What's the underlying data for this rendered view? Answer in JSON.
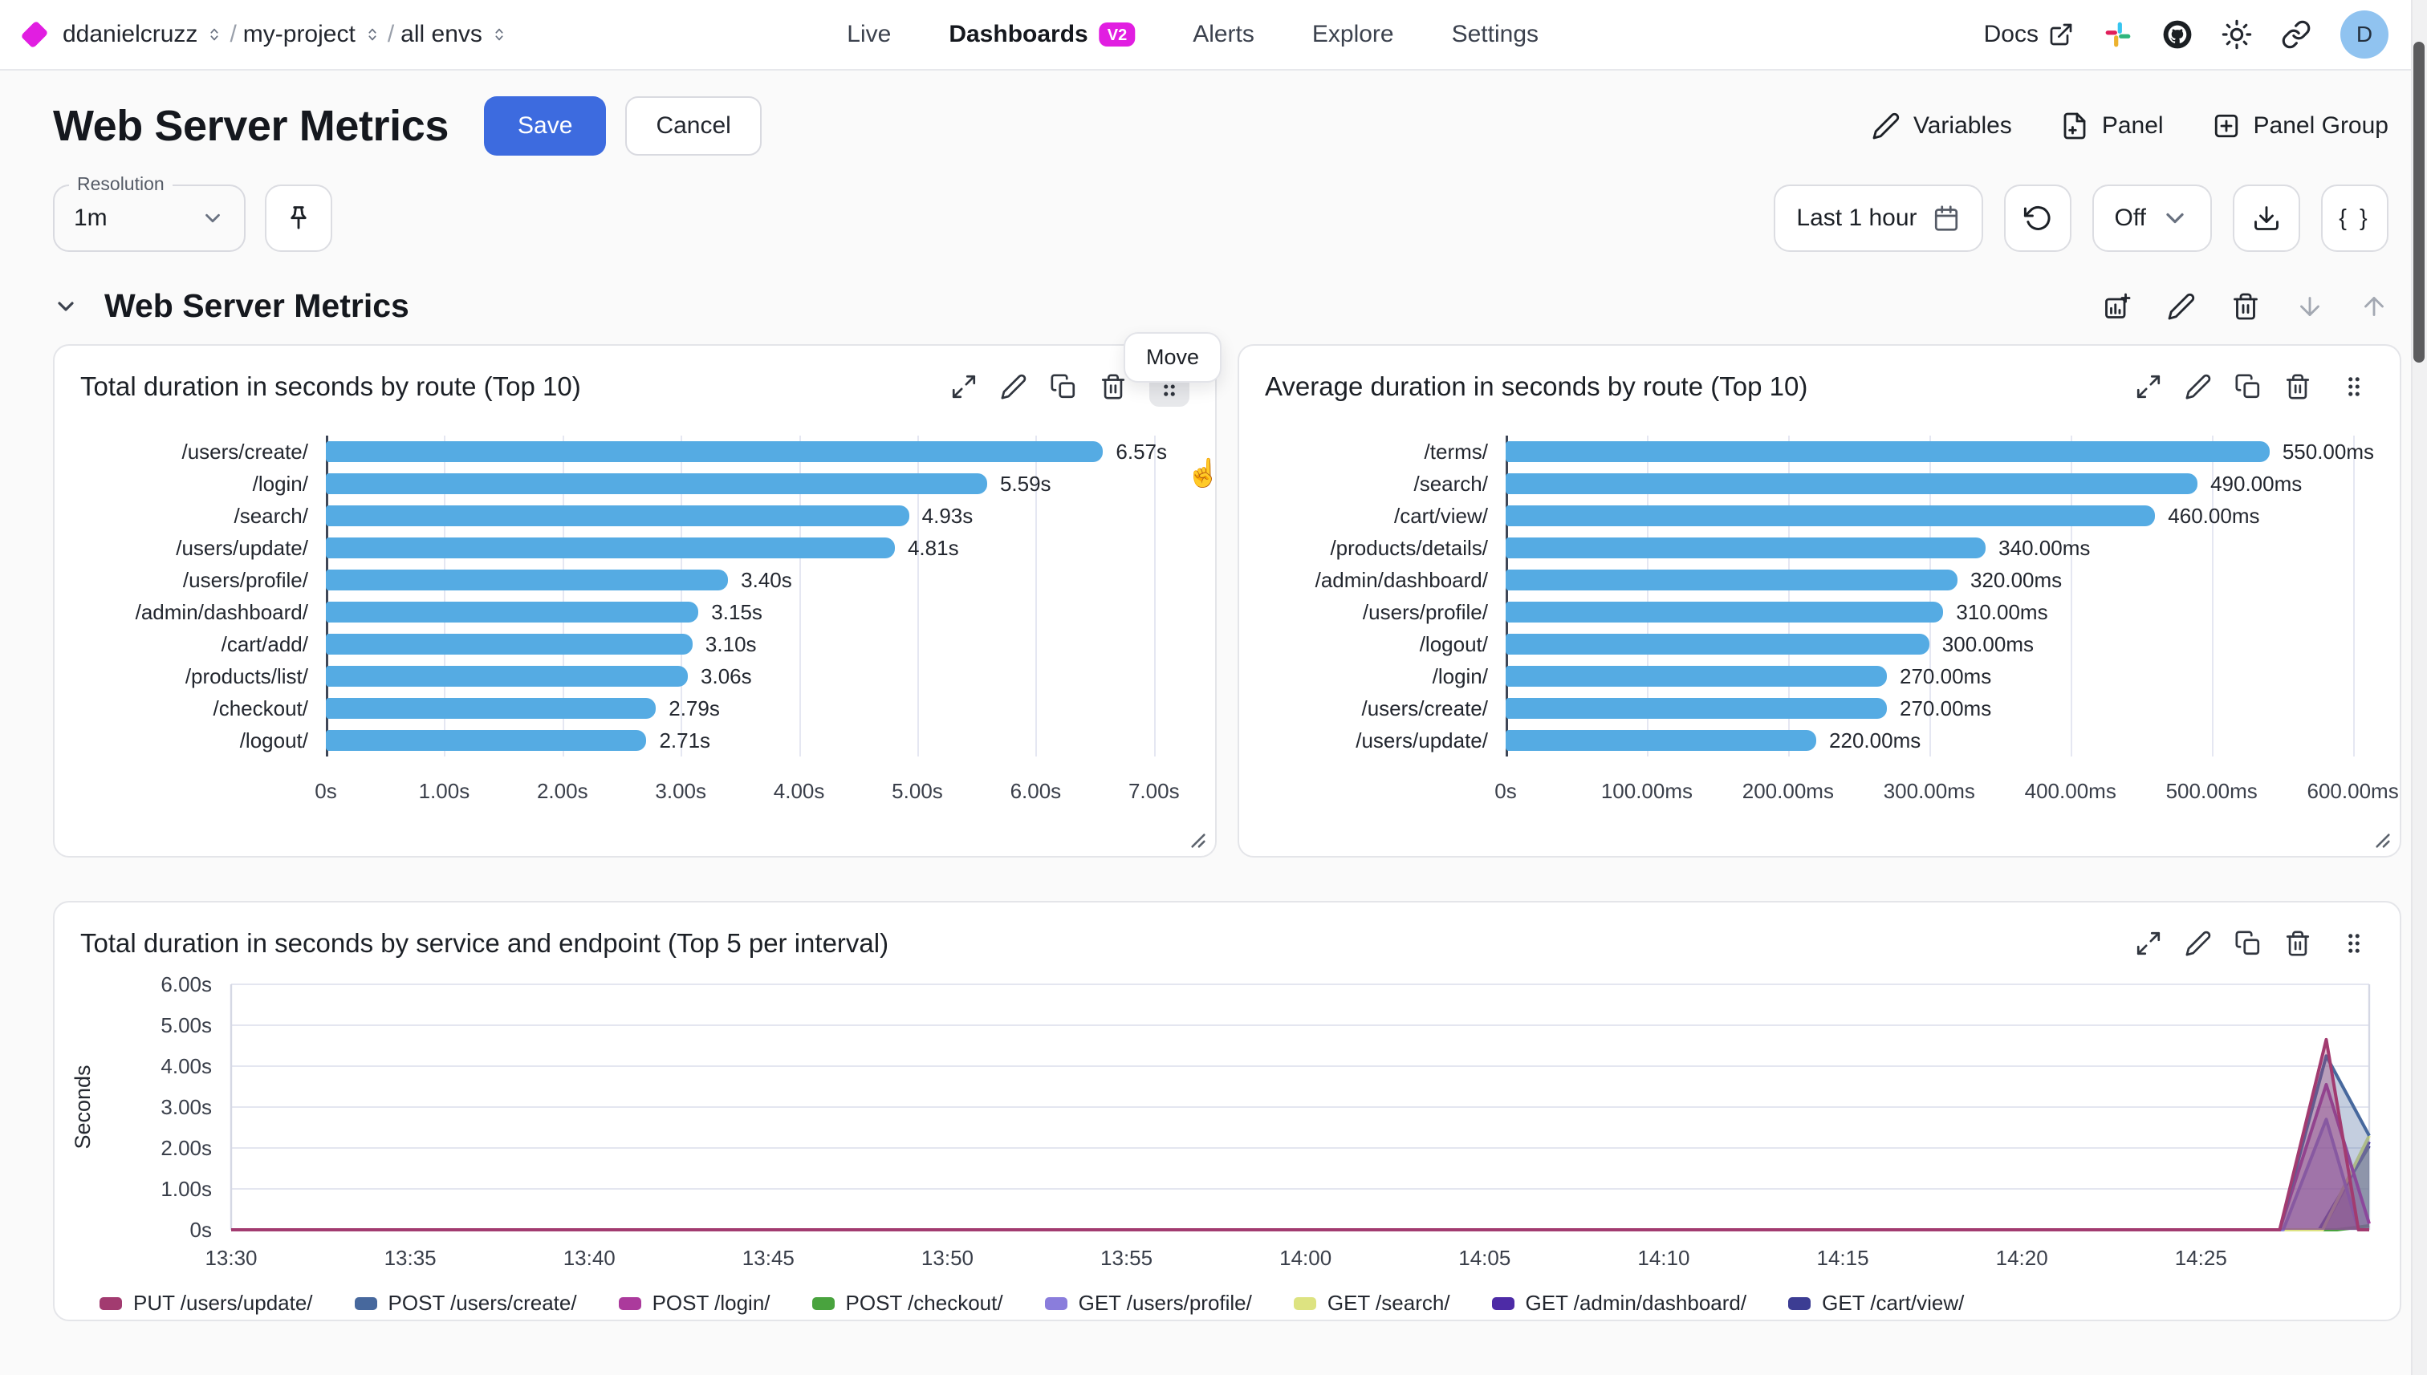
{
  "nav": {
    "breadcrumb": [
      {
        "label": "ddanielcruzz"
      },
      {
        "label": "my-project"
      },
      {
        "label": "all envs"
      }
    ],
    "tabs": [
      {
        "label": "Live",
        "active": false
      },
      {
        "label": "Dashboards",
        "active": true,
        "badge": "V2"
      },
      {
        "label": "Alerts",
        "active": false
      },
      {
        "label": "Explore",
        "active": false
      },
      {
        "label": "Settings",
        "active": false
      }
    ],
    "docs_label": "Docs",
    "icons_right": [
      "slack-icon",
      "github-icon",
      "theme-sun-icon",
      "share-link-icon"
    ],
    "avatar_letter": "D",
    "brand_color": "#e11ee1"
  },
  "header": {
    "title": "Web Server Metrics",
    "save_label": "Save",
    "cancel_label": "Cancel",
    "actions": [
      {
        "label": "Variables",
        "icon": "pencil-icon"
      },
      {
        "label": "Panel",
        "icon": "file-plus-icon"
      },
      {
        "label": "Panel Group",
        "icon": "square-plus-icon"
      }
    ],
    "save_color": "#3d6bdf"
  },
  "controls": {
    "resolution_label": "Resolution",
    "resolution_value": "1m",
    "time_range_label": "Last 1 hour",
    "refresh_value": "Off",
    "code_button_label": "{ }"
  },
  "section": {
    "title": "Web Server Metrics",
    "move_tooltip": "Move",
    "hand_cursor_glyph": "☝"
  },
  "chart_data": [
    {
      "type": "bar",
      "orientation": "horizontal",
      "title": "Total duration in seconds by route (Top 10)",
      "bar_color": "#55abe3",
      "categories": [
        "/users/create/",
        "/login/",
        "/search/",
        "/users/update/",
        "/users/profile/",
        "/admin/dashboard/",
        "/cart/add/",
        "/products/list/",
        "/checkout/",
        "/logout/"
      ],
      "values": [
        6.57,
        5.59,
        4.93,
        4.81,
        3.4,
        3.15,
        3.1,
        3.06,
        2.79,
        2.71
      ],
      "value_labels": [
        "6.57s",
        "5.59s",
        "4.93s",
        "4.81s",
        "3.40s",
        "3.15s",
        "3.10s",
        "3.06s",
        "2.79s",
        "2.71s"
      ],
      "tick_values": [
        0,
        1,
        2,
        3,
        4,
        5,
        6,
        7
      ],
      "tick_labels": [
        "0s",
        "1.00s",
        "2.00s",
        "3.00s",
        "4.00s",
        "5.00s",
        "6.00s",
        "7.00s"
      ],
      "xlim": [
        0,
        7.3
      ],
      "grid": true
    },
    {
      "type": "bar",
      "orientation": "horizontal",
      "title": "Average duration in seconds by route (Top 10)",
      "bar_color": "#55abe3",
      "categories": [
        "/terms/",
        "/search/",
        "/cart/view/",
        "/products/details/",
        "/admin/dashboard/",
        "/users/profile/",
        "/logout/",
        "/login/",
        "/users/create/",
        "/users/update/"
      ],
      "values": [
        550,
        490,
        460,
        340,
        320,
        310,
        300,
        270,
        270,
        220
      ],
      "value_labels": [
        "550.00ms",
        "490.00ms",
        "460.00ms",
        "340.00ms",
        "320.00ms",
        "310.00ms",
        "300.00ms",
        "270.00ms",
        "270.00ms",
        "220.00ms"
      ],
      "tick_values": [
        0,
        100,
        200,
        300,
        400,
        500,
        600
      ],
      "tick_labels": [
        "0s",
        "100.00ms",
        "200.00ms",
        "300.00ms",
        "400.00ms",
        "500.00ms",
        "600.00ms"
      ],
      "xlim": [
        0,
        615
      ],
      "grid": true
    },
    {
      "type": "area",
      "title": "Total duration in seconds by service and endpoint (Top 5 per interval)",
      "ylabel": "Seconds",
      "ylim": [
        0,
        6
      ],
      "y_tick_values": [
        0,
        1,
        2,
        3,
        4,
        5,
        6
      ],
      "y_tick_labels": [
        "0s",
        "1.00s",
        "2.00s",
        "3.00s",
        "4.00s",
        "5.00s",
        "6.00s"
      ],
      "x_tick_minutes": [
        0,
        5,
        10,
        15,
        20,
        25,
        30,
        35,
        40,
        45,
        50,
        55
      ],
      "x_tick_labels": [
        "13:30",
        "13:35",
        "13:40",
        "13:45",
        "13:50",
        "13:55",
        "14:00",
        "14:05",
        "14:10",
        "14:15",
        "14:20",
        "14:25"
      ],
      "xlim_minutes": [
        0,
        59.7
      ],
      "grid": true,
      "legend_position": "bottom",
      "series": [
        {
          "name": "PUT /users/update/",
          "color": "#a23b70",
          "points": [
            [
              0,
              0
            ],
            [
              57.2,
              0
            ],
            [
              58.5,
              4.65
            ],
            [
              59.4,
              0
            ],
            [
              59.7,
              0
            ]
          ]
        },
        {
          "name": "POST /users/create/",
          "color": "#47689d",
          "points": [
            [
              0,
              0
            ],
            [
              57.2,
              0
            ],
            [
              58.5,
              4.25
            ],
            [
              59.7,
              2.3
            ]
          ]
        },
        {
          "name": "POST /login/",
          "color": "#ab3a9c",
          "points": [
            [
              0,
              0
            ],
            [
              57.2,
              0
            ],
            [
              58.5,
              3.55
            ],
            [
              59.7,
              0.15
            ]
          ]
        },
        {
          "name": "POST /checkout/",
          "color": "#49a33e",
          "points": [
            [
              0,
              0
            ],
            [
              58.8,
              0
            ],
            [
              59.7,
              0.1
            ]
          ]
        },
        {
          "name": "GET /users/profile/",
          "color": "#8a7ddc",
          "points": [
            [
              0,
              0
            ],
            [
              57.3,
              0
            ],
            [
              58.5,
              2.7
            ],
            [
              59.4,
              0
            ],
            [
              59.7,
              0
            ]
          ]
        },
        {
          "name": "GET /search/",
          "color": "#dde381",
          "points": [
            [
              0,
              0
            ],
            [
              58.4,
              0
            ],
            [
              59.7,
              2.3
            ]
          ]
        },
        {
          "name": "GET /admin/dashboard/",
          "color": "#4d2ba6",
          "points": [
            [
              0,
              0
            ],
            [
              58.4,
              0
            ],
            [
              59.7,
              2.15
            ]
          ]
        },
        {
          "name": "GET /cart/view/",
          "color": "#3c3d93",
          "points": [
            [
              0,
              0
            ],
            [
              58.3,
              0
            ],
            [
              59.7,
              2.05
            ]
          ]
        }
      ]
    }
  ]
}
